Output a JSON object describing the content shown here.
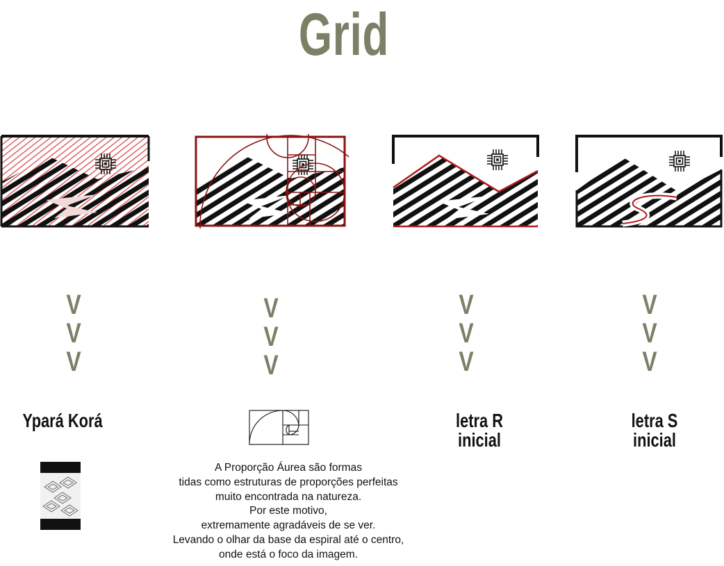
{
  "title": "Grid",
  "columns": [
    {
      "arrows": [
        "V",
        "V",
        "V"
      ],
      "label": "Ypará Korá"
    },
    {
      "arrows": [
        "V",
        "V",
        "V"
      ],
      "label": ""
    },
    {
      "arrows": [
        "V",
        "V",
        "V"
      ],
      "label": "letra R\ninicial",
      "label_lines": [
        "letra R",
        "inicial"
      ]
    },
    {
      "arrows": [
        "V",
        "V",
        "V"
      ],
      "label": "letra S\ninicial",
      "label_lines": [
        "letra S",
        "inicial"
      ]
    }
  ],
  "description_lines": [
    "A Proporção Áurea são formas",
    "tidas como estruturas de proporções perfeitas",
    "muito encontrada na natureza.",
    "Por este motivo,",
    "extremamente agradáveis de se ver.",
    "Levando o olhar da base da espiral até o centro,",
    "onde está o foco da imagem."
  ],
  "colors": {
    "title": "#7d7f67",
    "accent_red": "#a01818",
    "ink": "#111111"
  }
}
